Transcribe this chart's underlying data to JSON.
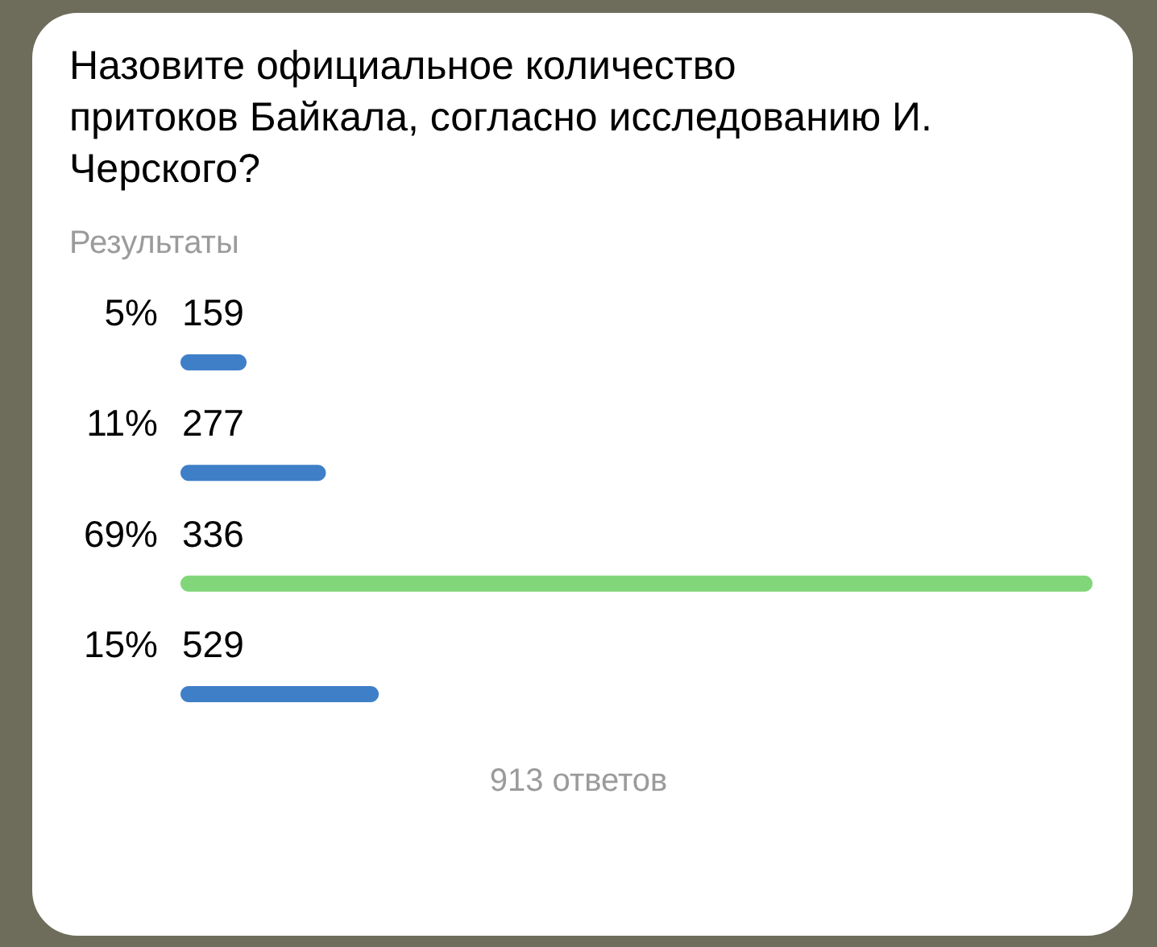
{
  "chart_data": {
    "type": "bar",
    "orientation": "horizontal",
    "title": "Назовите официальное количество притоков Байкала, согласно исследованию И. Черского?",
    "subtitle": "Результаты",
    "categories": [
      "159",
      "277",
      "336",
      "529"
    ],
    "values": [
      5,
      11,
      69,
      15
    ],
    "value_labels": [
      "5%",
      "11%",
      "69%",
      "15%"
    ],
    "colors": [
      "#3f7fc8",
      "#3f7fc8",
      "#82d67a",
      "#3f7fc8"
    ],
    "annotations": [
      "913 ответов"
    ]
  }
}
